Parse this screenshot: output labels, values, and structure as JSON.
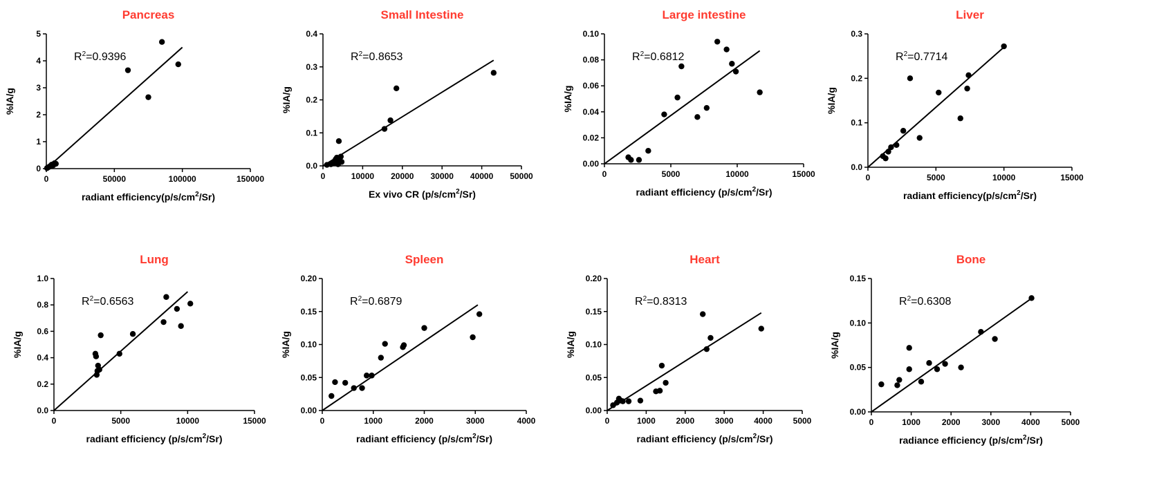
{
  "chart_data": [
    {
      "type": "scatter",
      "title": "Pancreas",
      "xlabel": "radiant efficiency(p/s/cm²/Sr)",
      "ylabel": "%IA/g",
      "r2_label": "R²=0.9396",
      "xlim": [
        0,
        150000
      ],
      "ylim": [
        0,
        5
      ],
      "xticks": [
        0,
        50000,
        100000,
        150000
      ],
      "xtick_labels": [
        "0",
        "50000",
        "100000",
        "150000"
      ],
      "yticks": [
        0,
        1,
        2,
        3,
        4,
        5
      ],
      "ytick_labels": [
        "0",
        "1",
        "2",
        "3",
        "4",
        "5"
      ],
      "points": [
        [
          500,
          0.02
        ],
        [
          1500,
          0.05
        ],
        [
          2500,
          0.08
        ],
        [
          3000,
          0.1
        ],
        [
          4000,
          0.15
        ],
        [
          5000,
          0.12
        ],
        [
          6000,
          0.2
        ],
        [
          7000,
          0.18
        ],
        [
          60000,
          3.65
        ],
        [
          75000,
          2.65
        ],
        [
          85000,
          4.7
        ],
        [
          97000,
          3.87
        ]
      ],
      "fit": [
        [
          0,
          0
        ],
        [
          100000,
          4.5
        ]
      ]
    },
    {
      "type": "scatter",
      "title": "Small Intestine",
      "xlabel": "Ex vivo CR (p/s/cm²/Sr)",
      "ylabel": "%IA/g",
      "r2_label": "R²=0.8653",
      "xlim": [
        0,
        50000
      ],
      "ylim": [
        0,
        0.4
      ],
      "xticks": [
        0,
        10000,
        20000,
        30000,
        40000,
        50000
      ],
      "xtick_labels": [
        "0",
        "10000",
        "20000",
        "30000",
        "40000",
        "50000"
      ],
      "yticks": [
        0,
        0.1,
        0.2,
        0.3,
        0.4
      ],
      "ytick_labels": [
        "0.0",
        "0.1",
        "0.2",
        "0.3",
        "0.4"
      ],
      "points": [
        [
          1000,
          0.003
        ],
        [
          2000,
          0.005
        ],
        [
          2500,
          0.008
        ],
        [
          3000,
          0.01
        ],
        [
          3200,
          0.02
        ],
        [
          3500,
          0.025
        ],
        [
          3800,
          0.005
        ],
        [
          4000,
          0.075
        ],
        [
          4200,
          0.015
        ],
        [
          4500,
          0.028
        ],
        [
          4700,
          0.012
        ],
        [
          15500,
          0.112
        ],
        [
          17000,
          0.138
        ],
        [
          18500,
          0.235
        ],
        [
          43000,
          0.282
        ]
      ],
      "fit": [
        [
          0,
          0
        ],
        [
          43000,
          0.32
        ]
      ]
    },
    {
      "type": "scatter",
      "title": "Large intestine",
      "xlabel": "radiant efficiency (p/s/cm²/Sr)",
      "ylabel": "%IA/g",
      "r2_label": "R²=0.6812",
      "xlim": [
        0,
        15000
      ],
      "ylim": [
        0,
        0.1
      ],
      "xticks": [
        0,
        5000,
        10000,
        15000
      ],
      "xtick_labels": [
        "0",
        "5000",
        "10000",
        "15000"
      ],
      "yticks": [
        0,
        0.02,
        0.04,
        0.06,
        0.08,
        0.1
      ],
      "ytick_labels": [
        "0.00",
        "0.02",
        "0.04",
        "0.06",
        "0.08",
        "0.10"
      ],
      "points": [
        [
          1800,
          0.005
        ],
        [
          2000,
          0.003
        ],
        [
          2600,
          0.003
        ],
        [
          3300,
          0.01
        ],
        [
          4500,
          0.038
        ],
        [
          5500,
          0.051
        ],
        [
          5800,
          0.075
        ],
        [
          7000,
          0.036
        ],
        [
          7700,
          0.043
        ],
        [
          8500,
          0.094
        ],
        [
          9200,
          0.088
        ],
        [
          9600,
          0.077
        ],
        [
          9900,
          0.071
        ],
        [
          11700,
          0.055
        ]
      ],
      "fit": [
        [
          0,
          0
        ],
        [
          11700,
          0.087
        ]
      ]
    },
    {
      "type": "scatter",
      "title": "Liver",
      "xlabel": "radiant efficiency(p/s/cm²/Sr)",
      "ylabel": "%IA/g",
      "r2_label": "R²=0.7714",
      "xlim": [
        0,
        15000
      ],
      "ylim": [
        0,
        0.3
      ],
      "xticks": [
        0,
        5000,
        10000,
        15000
      ],
      "xtick_labels": [
        "0",
        "5000",
        "10000",
        "15000"
      ],
      "yticks": [
        0,
        0.1,
        0.2,
        0.3
      ],
      "ytick_labels": [
        "0.0",
        "0.1",
        "0.2",
        "0.3"
      ],
      "points": [
        [
          1100,
          0.025
        ],
        [
          1300,
          0.02
        ],
        [
          1500,
          0.035
        ],
        [
          1700,
          0.045
        ],
        [
          2100,
          0.05
        ],
        [
          2600,
          0.082
        ],
        [
          3100,
          0.2
        ],
        [
          3800,
          0.066
        ],
        [
          5200,
          0.168
        ],
        [
          6800,
          0.11
        ],
        [
          7300,
          0.177
        ],
        [
          7400,
          0.207
        ],
        [
          10000,
          0.272
        ]
      ],
      "fit": [
        [
          0,
          0
        ],
        [
          10000,
          0.27
        ]
      ]
    },
    {
      "type": "scatter",
      "title": "Lung",
      "xlabel": "radiant efficiency (p/s/cm²/Sr)",
      "ylabel": "%IA/g",
      "r2_label": "R²=0.6563",
      "xlim": [
        0,
        15000
      ],
      "ylim": [
        0,
        1
      ],
      "xticks": [
        0,
        5000,
        10000,
        15000
      ],
      "xtick_labels": [
        "0",
        "5000",
        "10000",
        "15000"
      ],
      "yticks": [
        0,
        0.2,
        0.4,
        0.6,
        0.8,
        1.0
      ],
      "ytick_labels": [
        "0.0",
        "0.2",
        "0.4",
        "0.6",
        "0.8",
        "1.0"
      ],
      "points": [
        [
          3100,
          0.43
        ],
        [
          3150,
          0.41
        ],
        [
          3200,
          0.27
        ],
        [
          3250,
          0.3
        ],
        [
          3300,
          0.34
        ],
        [
          3400,
          0.31
        ],
        [
          3500,
          0.57
        ],
        [
          4900,
          0.43
        ],
        [
          5900,
          0.58
        ],
        [
          8200,
          0.67
        ],
        [
          8400,
          0.86
        ],
        [
          9200,
          0.77
        ],
        [
          9500,
          0.64
        ],
        [
          10200,
          0.81
        ]
      ],
      "fit": [
        [
          0,
          0
        ],
        [
          10000,
          0.9
        ]
      ]
    },
    {
      "type": "scatter",
      "title": "Spleen",
      "xlabel": "radiant efficiency (p/s/cm²/Sr)",
      "ylabel": "%IA/g",
      "r2_label": "R²=0.6879",
      "xlim": [
        0,
        4000
      ],
      "ylim": [
        0,
        0.2
      ],
      "xticks": [
        0,
        1000,
        2000,
        3000,
        4000
      ],
      "xtick_labels": [
        "0",
        "1000",
        "2000",
        "3000",
        "4000"
      ],
      "yticks": [
        0,
        0.05,
        0.1,
        0.15,
        0.2
      ],
      "ytick_labels": [
        "0.00",
        "0.05",
        "0.10",
        "0.15",
        "0.20"
      ],
      "points": [
        [
          180,
          0.022
        ],
        [
          250,
          0.043
        ],
        [
          450,
          0.042
        ],
        [
          620,
          0.034
        ],
        [
          780,
          0.034
        ],
        [
          870,
          0.053
        ],
        [
          970,
          0.053
        ],
        [
          1150,
          0.08
        ],
        [
          1230,
          0.101
        ],
        [
          1580,
          0.096
        ],
        [
          1600,
          0.099
        ],
        [
          2000,
          0.125
        ],
        [
          2950,
          0.111
        ],
        [
          3080,
          0.146
        ]
      ],
      "fit": [
        [
          0,
          0
        ],
        [
          3050,
          0.16
        ]
      ]
    },
    {
      "type": "scatter",
      "title": "Heart",
      "xlabel": "radiant efficiency (p/s/cm²/Sr)",
      "ylabel": "%IA/g",
      "r2_label": "R²=0.8313",
      "xlim": [
        0,
        5000
      ],
      "ylim": [
        0,
        0.2
      ],
      "xticks": [
        0,
        1000,
        2000,
        3000,
        4000,
        5000
      ],
      "xtick_labels": [
        "0",
        "1000",
        "2000",
        "3000",
        "4000",
        "5000"
      ],
      "yticks": [
        0,
        0.05,
        0.1,
        0.15,
        0.2
      ],
      "ytick_labels": [
        "0.00",
        "0.05",
        "0.10",
        "0.15",
        "0.20"
      ],
      "points": [
        [
          150,
          0.008
        ],
        [
          250,
          0.012
        ],
        [
          300,
          0.018
        ],
        [
          350,
          0.015
        ],
        [
          400,
          0.014
        ],
        [
          550,
          0.014
        ],
        [
          850,
          0.015
        ],
        [
          1250,
          0.029
        ],
        [
          1350,
          0.03
        ],
        [
          1400,
          0.068
        ],
        [
          1500,
          0.042
        ],
        [
          2450,
          0.146
        ],
        [
          2550,
          0.093
        ],
        [
          2650,
          0.11
        ],
        [
          3950,
          0.124
        ]
      ],
      "fit": [
        [
          0,
          0
        ],
        [
          3950,
          0.148
        ]
      ]
    },
    {
      "type": "scatter",
      "title": "Bone",
      "xlabel": "radiance efficiency (p/s/cm²/Sr)",
      "ylabel": "%IA/g",
      "r2_label": "R²=0.6308",
      "xlim": [
        0,
        5000
      ],
      "ylim": [
        0,
        0.15
      ],
      "xticks": [
        0,
        1000,
        2000,
        3000,
        4000,
        5000
      ],
      "xtick_labels": [
        "0",
        "1000",
        "2000",
        "3000",
        "4000",
        "5000"
      ],
      "yticks": [
        0,
        0.05,
        0.1,
        0.15
      ],
      "ytick_labels": [
        "0.00",
        "0.05",
        "0.10",
        "0.15"
      ],
      "points": [
        [
          250,
          0.031
        ],
        [
          650,
          0.03
        ],
        [
          700,
          0.036
        ],
        [
          950,
          0.048
        ],
        [
          950,
          0.072
        ],
        [
          1250,
          0.034
        ],
        [
          1450,
          0.055
        ],
        [
          1650,
          0.048
        ],
        [
          1850,
          0.054
        ],
        [
          2250,
          0.05
        ],
        [
          2750,
          0.09
        ],
        [
          3100,
          0.082
        ],
        [
          4020,
          0.128
        ]
      ],
      "fit": [
        [
          0,
          0
        ],
        [
          4000,
          0.127
        ]
      ]
    }
  ]
}
